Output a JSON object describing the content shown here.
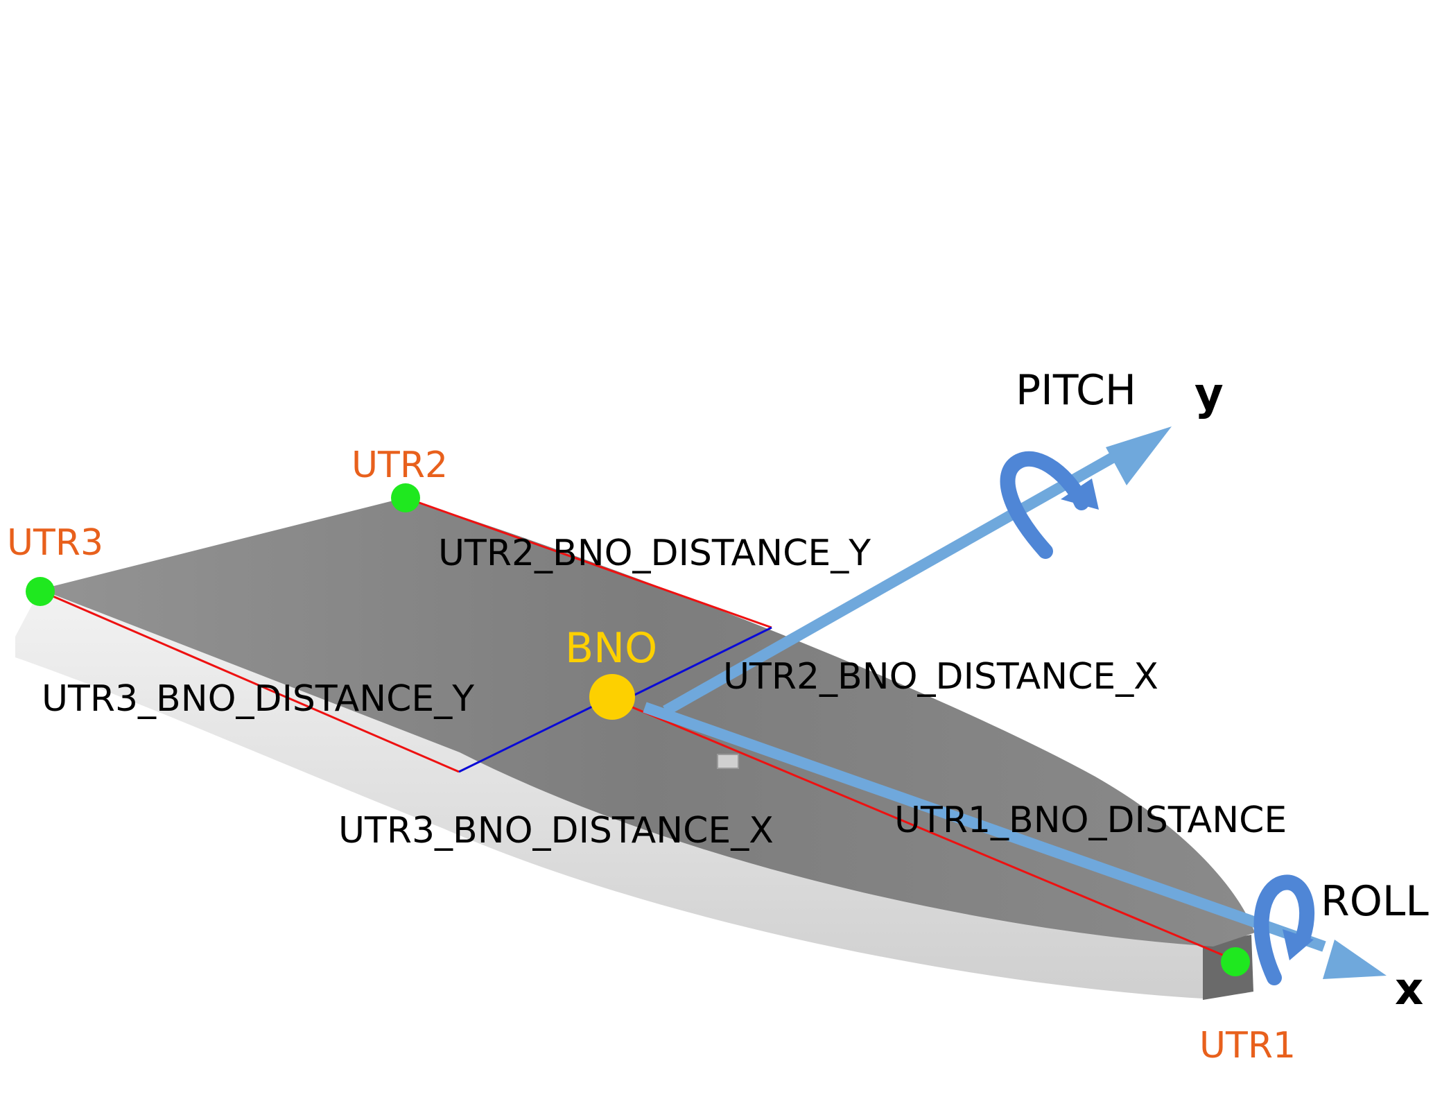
{
  "colors": {
    "sensor_point": "#1fe81f",
    "sensor_label": "#e8601c",
    "bno": "#fdd000",
    "distance_line": "#ee1111",
    "offset_line": "#0a0ad6",
    "axis_arrow": "#6fa8dc",
    "rotation_arrow": "#4f86d6",
    "board_top": "#858585",
    "board_side": "#dedede"
  },
  "sensors": {
    "utr1": "UTR1",
    "utr2": "UTR2",
    "utr3": "UTR3",
    "bno": "BNO"
  },
  "distances": {
    "utr1": "UTR1_BNO_DISTANCE",
    "utr2_x": "UTR2_BNO_DISTANCE_X",
    "utr2_y": "UTR2_BNO_DISTANCE_Y",
    "utr3_x": "UTR3_BNO_DISTANCE_X",
    "utr3_y": "UTR3_BNO_DISTANCE_Y"
  },
  "axes": {
    "x": "x",
    "y": "y",
    "roll": "ROLL",
    "pitch": "PITCH"
  },
  "icons": {
    "pitch_rotation": "curved-rotation-arrow-icon",
    "roll_rotation": "curved-rotation-arrow-icon"
  }
}
